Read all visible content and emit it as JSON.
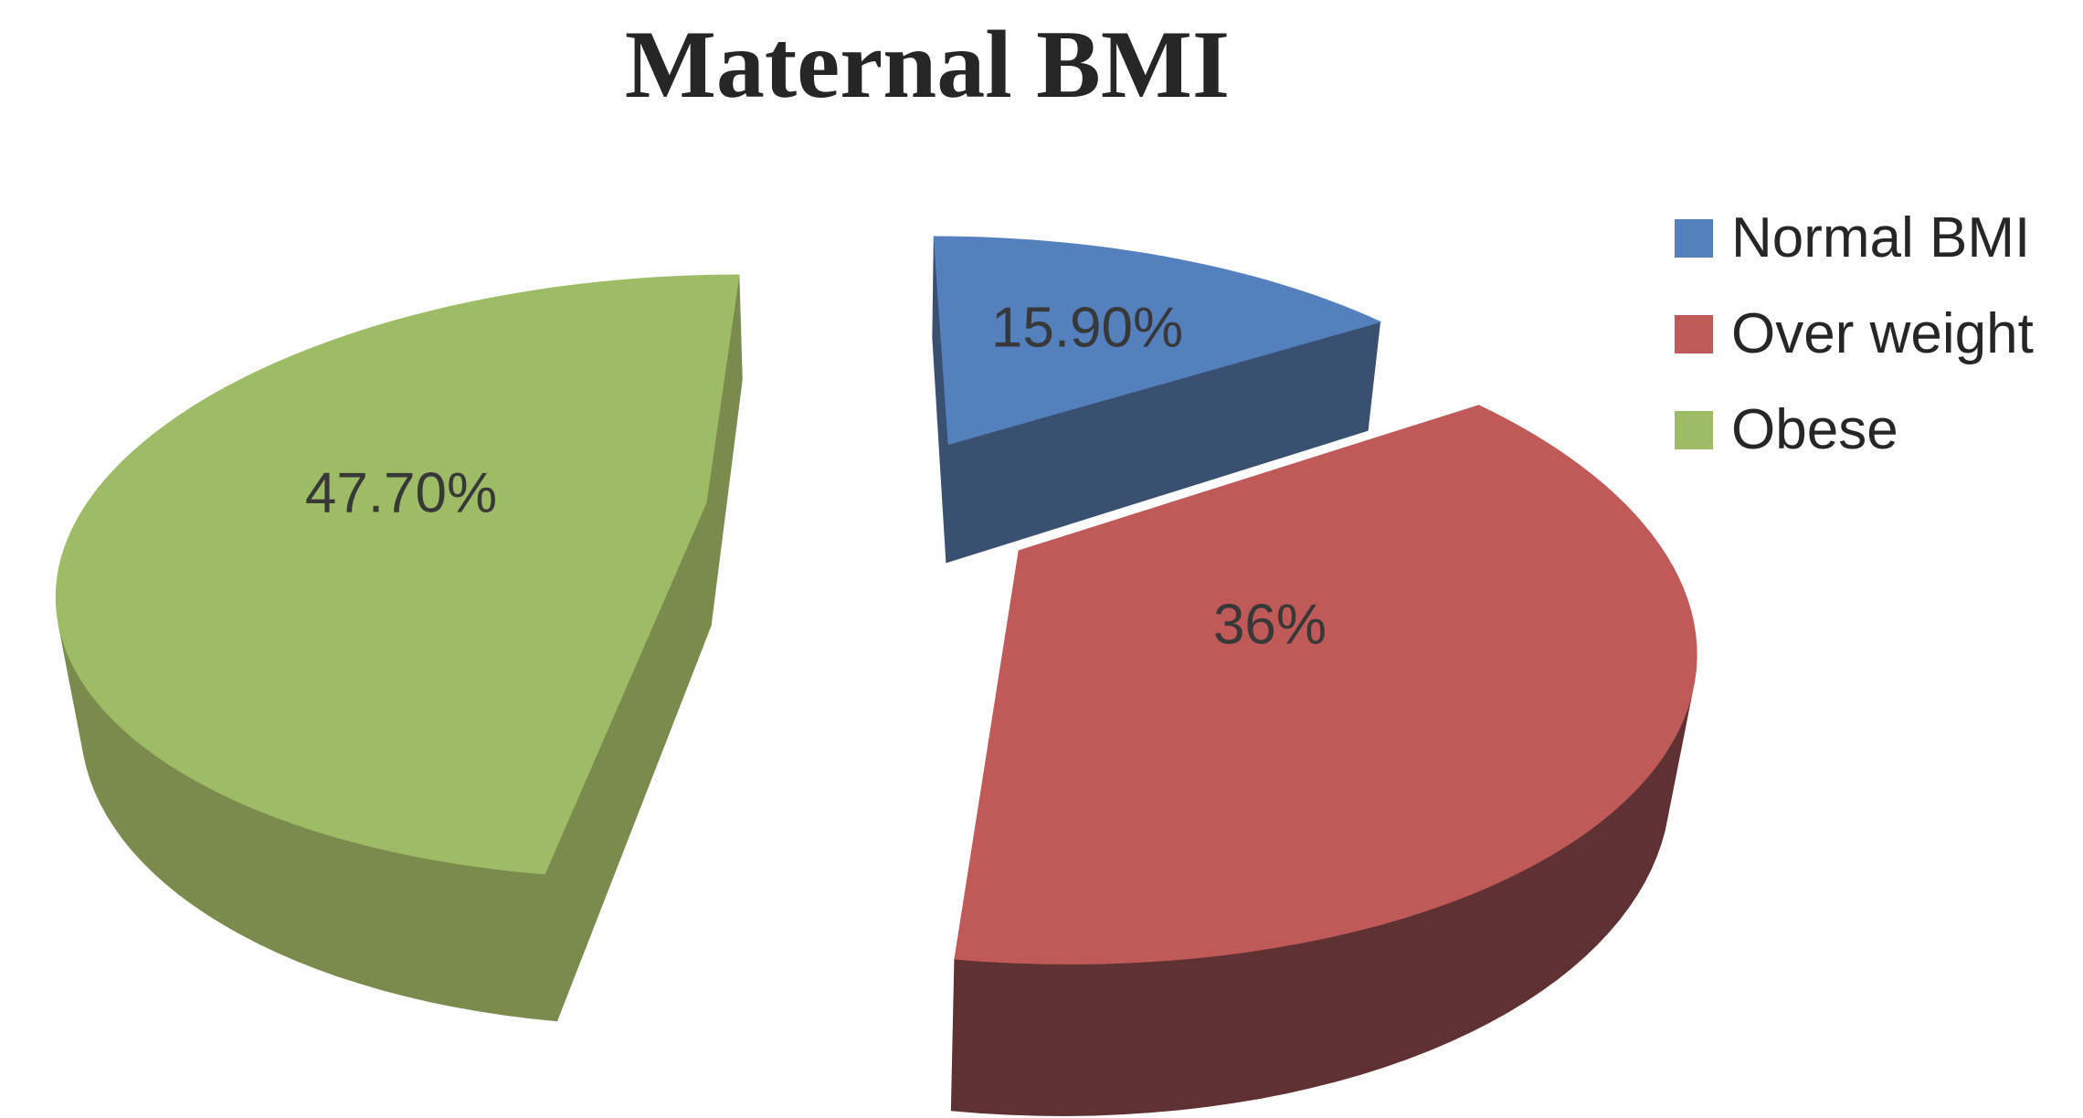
{
  "title": "Maternal BMI",
  "chart_data": {
    "type": "pie",
    "style": "3d-exploded-pie",
    "title": "Maternal BMI",
    "start_angle_deg": 0,
    "direction": "clockwise",
    "legend_position": "right",
    "slices": [
      {
        "label": "Normal BMI",
        "value": 15.9,
        "display": "15.90%",
        "color_top": "#5580BE",
        "color_side": "#3A5070"
      },
      {
        "label": "Over weight",
        "value": 36.0,
        "display": "36%",
        "color_top": "#C05A59",
        "color_side": "#5F3133"
      },
      {
        "label": "Obese",
        "value": 47.7,
        "display": "47.70%",
        "color_top": "#9DBC65",
        "color_side": "#7A8B4D"
      }
    ],
    "slice_label_color": "#383838",
    "title_color": "#262626",
    "legend_text_color": "#262626",
    "background": "#ffffff"
  }
}
